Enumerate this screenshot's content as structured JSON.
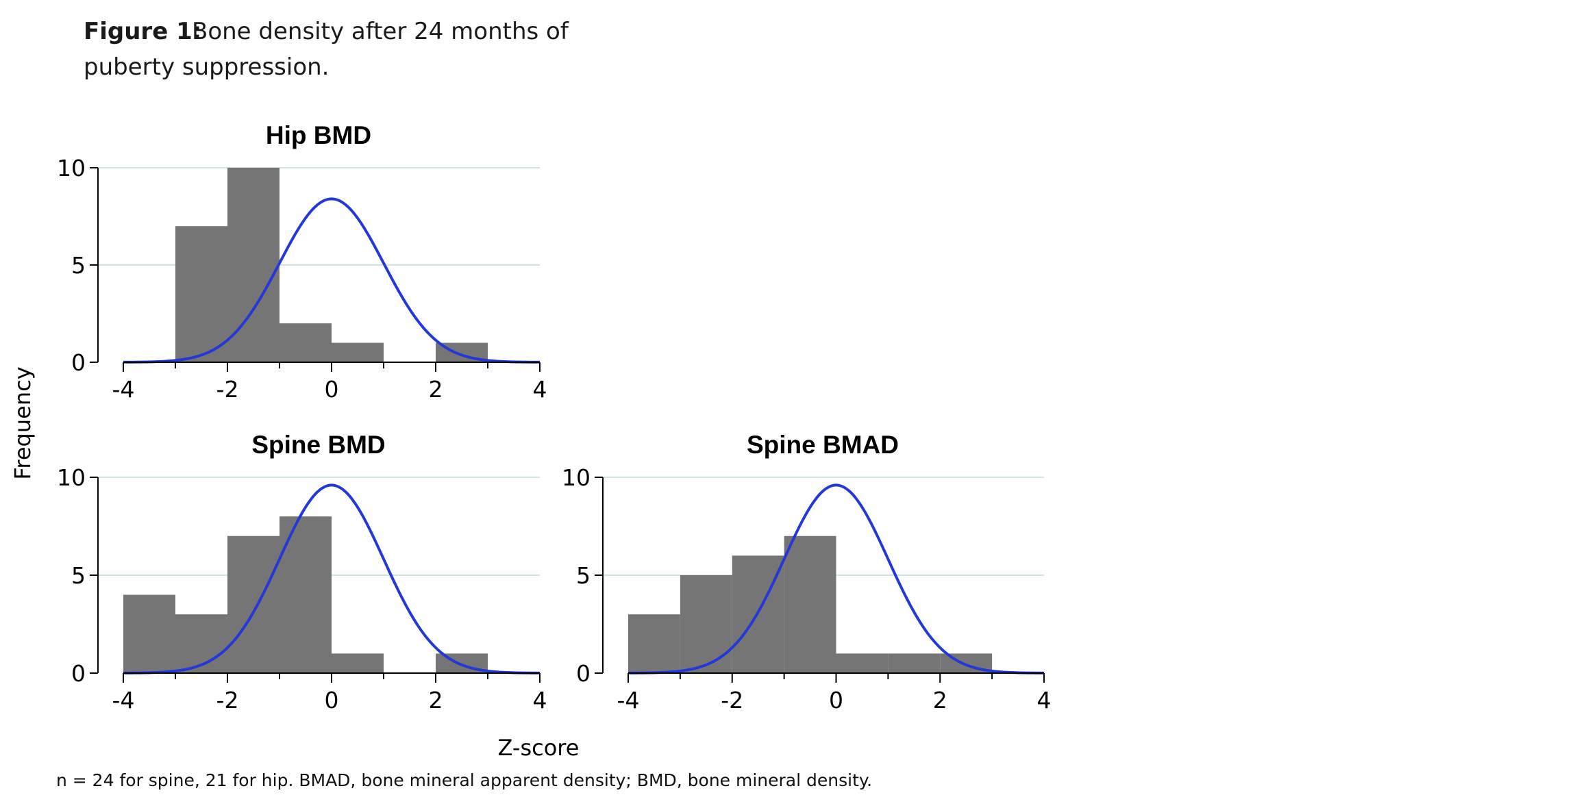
{
  "figure": {
    "label": "Figure 1:",
    "title_line1": "Bone density after 24 months of",
    "title_line2": "puberty suppression.",
    "y_axis_label": "Frequency",
    "x_axis_label": "Z-score",
    "footnote": "n = 24 for spine, 21 for hip. BMAD, bone mineral apparent density; BMD, bone mineral density."
  },
  "colors": {
    "bars": "#757575",
    "curve": "#2437d9",
    "grid": "#cfe3e5",
    "axis": "#000000"
  },
  "chart_data": [
    {
      "type": "bar",
      "title": "Hip BMD",
      "xlabel": "Z-score",
      "ylabel": "Frequency",
      "bin_edges": [
        -3,
        -2,
        -1,
        0,
        1,
        2,
        3
      ],
      "values": [
        7,
        10,
        2,
        1,
        0,
        1
      ],
      "xlim": [
        -4,
        4
      ],
      "xticks": [
        -4,
        -2,
        0,
        2,
        4
      ],
      "ylim": [
        0,
        10
      ],
      "yticks": [
        0,
        5,
        10
      ],
      "grid": true,
      "normal_curve": {
        "mean": 0,
        "sd": 1,
        "peak": 8.4
      }
    },
    {
      "type": "bar",
      "title": "Spine BMD",
      "xlabel": "Z-score",
      "ylabel": "Frequency",
      "bin_edges": [
        -4,
        -3,
        -2,
        -1,
        0,
        1,
        2,
        3
      ],
      "values": [
        4,
        3,
        7,
        8,
        1,
        0,
        1
      ],
      "xlim": [
        -4,
        4
      ],
      "xticks": [
        -4,
        -2,
        0,
        2,
        4
      ],
      "ylim": [
        0,
        10
      ],
      "yticks": [
        0,
        5,
        10
      ],
      "grid": true,
      "normal_curve": {
        "mean": 0,
        "sd": 1,
        "peak": 9.6
      }
    },
    {
      "type": "bar",
      "title": "Spine BMAD",
      "xlabel": "Z-score",
      "ylabel": "Frequency",
      "bin_edges": [
        -4,
        -3,
        -2,
        -1,
        0,
        1,
        2,
        3
      ],
      "values": [
        3,
        5,
        6,
        7,
        1,
        1,
        1
      ],
      "xlim": [
        -4,
        4
      ],
      "xticks": [
        -4,
        -2,
        0,
        2,
        4
      ],
      "ylim": [
        0,
        10
      ],
      "yticks": [
        0,
        5,
        10
      ],
      "grid": true,
      "normal_curve": {
        "mean": 0,
        "sd": 1,
        "peak": 9.6
      }
    }
  ]
}
